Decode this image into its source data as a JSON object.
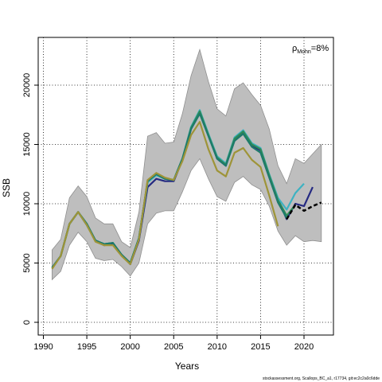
{
  "chart_data": {
    "type": "line",
    "xlabel": "Years",
    "ylabel": "SSB",
    "xlim": [
      1990,
      2022
    ],
    "ylim": [
      0,
      23000
    ],
    "x_ticks": [
      1990,
      1995,
      2000,
      2005,
      2010,
      2015,
      2020
    ],
    "y_ticks": [
      0,
      5000,
      10000,
      15000,
      20000
    ],
    "grid": "dotted",
    "annotation": {
      "rho_symbol": "ρ",
      "rho_subscript": "Mohn",
      "rho_value": "=8%",
      "placement": "top-right"
    },
    "footer": "stockassessment.org, Scallops_BC_a1, r17734, git:ec2c2a0c6dde",
    "band": {
      "x": [
        1991,
        1992,
        1993,
        1994,
        1995,
        1996,
        1997,
        1998,
        1999,
        2000,
        2001,
        2002,
        2003,
        2004,
        2005,
        2006,
        2007,
        2008,
        2009,
        2010,
        2011,
        2012,
        2013,
        2014,
        2015,
        2016,
        2017,
        2018,
        2019,
        2020,
        2021,
        2022
      ],
      "lower": [
        3600,
        4300,
        6500,
        7600,
        6800,
        5400,
        5200,
        5300,
        4700,
        3900,
        5000,
        8300,
        9200,
        9400,
        9400,
        11000,
        12800,
        13800,
        12100,
        10600,
        10200,
        11800,
        12300,
        11600,
        11200,
        9800,
        7700,
        6500,
        7300,
        6800,
        6900,
        6800
      ],
      "upper": [
        6100,
        7000,
        10500,
        11500,
        10600,
        8800,
        8300,
        8300,
        6800,
        6300,
        9300,
        15700,
        16000,
        15100,
        15200,
        17600,
        20800,
        23000,
        20300,
        18000,
        17400,
        19700,
        20200,
        19200,
        18300,
        16300,
        13200,
        11700,
        13800,
        13400,
        14200,
        15000
      ],
      "color": "#bebebe"
    },
    "series": [
      {
        "color": "#252a82",
        "x": [
          1991,
          1992,
          1993,
          1994,
          1995,
          1996,
          1997,
          1998,
          1999,
          2000,
          2001,
          2002,
          2003,
          2004,
          2005,
          2006,
          2007,
          2008,
          2009,
          2010,
          2011,
          2012,
          2013,
          2014,
          2015,
          2016,
          2017,
          2018,
          2019,
          2020,
          2021
        ],
        "y": [
          4600,
          5600,
          8300,
          9300,
          8200,
          6900,
          6500,
          6600,
          5700,
          4900,
          6900,
          11400,
          12100,
          11900,
          11900,
          13700,
          16300,
          17700,
          15800,
          13800,
          13200,
          15400,
          16000,
          14900,
          14500,
          12300,
          10400,
          8700,
          10000,
          9800,
          11400
        ]
      },
      {
        "color": "#3db2c2",
        "x": [
          1991,
          1992,
          1993,
          1994,
          1995,
          1996,
          1997,
          1998,
          1999,
          2000,
          2001,
          2002,
          2003,
          2004,
          2005,
          2006,
          2007,
          2008,
          2009,
          2010,
          2011,
          2012,
          2013,
          2014,
          2015,
          2016,
          2017,
          2018,
          2019,
          2020
        ],
        "y": [
          4600,
          5600,
          8300,
          9300,
          8200,
          6900,
          6600,
          6700,
          5700,
          5000,
          7100,
          11800,
          12400,
          12100,
          12000,
          13800,
          16500,
          17900,
          15900,
          14000,
          13400,
          15600,
          16200,
          15100,
          14700,
          12500,
          10500,
          9500,
          10900,
          11700
        ]
      },
      {
        "color": "#2e8b57",
        "x": [
          1991,
          1992,
          1993,
          1994,
          1995,
          1996,
          1997,
          1998,
          1999,
          2000,
          2001,
          2002,
          2003,
          2004,
          2005,
          2006,
          2007,
          2008,
          2009,
          2010,
          2011,
          2012,
          2013,
          2014,
          2015,
          2016,
          2017,
          2018,
          2019
        ],
        "y": [
          4600,
          5600,
          8300,
          9300,
          8300,
          6900,
          6600,
          6700,
          5700,
          5000,
          7100,
          11900,
          12500,
          12100,
          12000,
          13800,
          16400,
          17800,
          15800,
          13900,
          13300,
          15500,
          16100,
          15000,
          14600,
          12400,
          10300,
          9000,
          9900
        ]
      },
      {
        "color": "#1d7a6b",
        "x": [
          1991,
          1992,
          1993,
          1994,
          1995,
          1996,
          1997,
          1998,
          1999,
          2000,
          2001,
          2002,
          2003,
          2004,
          2005,
          2006,
          2007,
          2008,
          2009,
          2010,
          2011,
          2012,
          2013,
          2014,
          2015,
          2016,
          2017,
          2018
        ],
        "y": [
          4600,
          5600,
          8300,
          9300,
          8300,
          6900,
          6600,
          6700,
          5700,
          5000,
          7100,
          11900,
          12500,
          12100,
          12000,
          13800,
          16300,
          17600,
          15700,
          13800,
          13200,
          15300,
          15900,
          14800,
          14300,
          12200,
          10100,
          8800
        ]
      },
      {
        "color": "#9e9438",
        "x": [
          1991,
          1992,
          1993,
          1994,
          1995,
          1996,
          1997,
          1998,
          1999,
          2000,
          2001,
          2002,
          2003,
          2004,
          2005,
          2006,
          2007,
          2008,
          2009,
          2010,
          2011,
          2012,
          2013,
          2014,
          2015,
          2016,
          2017
        ],
        "y": [
          4500,
          5600,
          8300,
          9300,
          8200,
          6800,
          6500,
          6500,
          5600,
          4900,
          7000,
          12000,
          12600,
          12200,
          12000,
          13600,
          15800,
          16900,
          14600,
          12800,
          12300,
          14300,
          14700,
          13700,
          13100,
          10700,
          8100
        ]
      },
      {
        "color": "#000000",
        "dashed": true,
        "x": [
          2018,
          2019,
          2020,
          2021,
          2022
        ],
        "y": [
          8700,
          9900,
          9400,
          9800,
          10100
        ]
      }
    ]
  }
}
